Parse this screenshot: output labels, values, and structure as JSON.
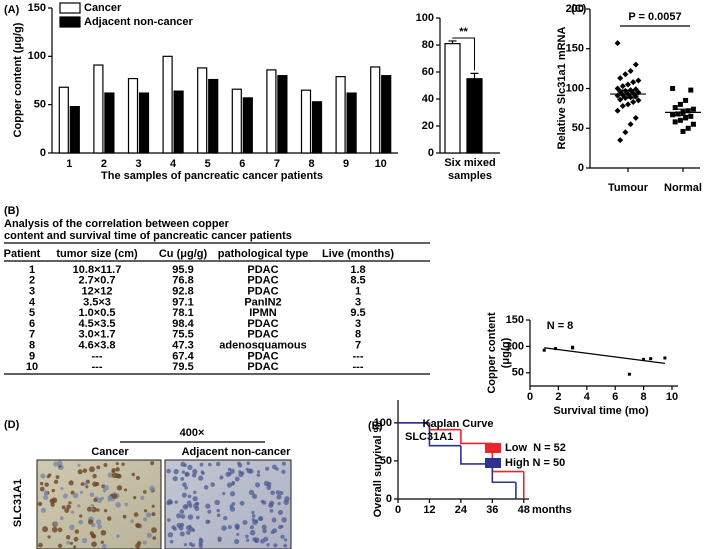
{
  "panel_labels": [
    "(A)",
    "(B)",
    "(C)",
    "(D)",
    "(E)"
  ],
  "chart_data": [
    {
      "type": "bar",
      "ylabel": "Copper content (μg/g)",
      "xlabel": "The samples of pancreatic cancer patients",
      "categories": [
        "1",
        "2",
        "3",
        "4",
        "5",
        "6",
        "7",
        "8",
        "9",
        "10"
      ],
      "series": [
        {
          "name": "Cancer",
          "color": "#ffffff",
          "values": [
            68,
            91,
            77,
            100,
            88,
            66,
            86,
            65,
            79,
            89
          ]
        },
        {
          "name": "Adjacent non-cancer",
          "color": "#000000",
          "values": [
            48,
            62,
            62,
            64,
            76,
            57,
            80,
            53,
            62,
            80
          ]
        }
      ],
      "ylim": [
        0,
        150
      ],
      "yticks": [
        0,
        50,
        100,
        150
      ]
    },
    {
      "type": "bar",
      "categories": [
        "Six mixed samples"
      ],
      "annotation": "**",
      "series": [
        {
          "color": "#ffffff",
          "values": [
            81
          ],
          "errors": [
            2
          ]
        },
        {
          "color": "#000000",
          "values": [
            55
          ],
          "errors": [
            4
          ]
        }
      ],
      "ylim": [
        0,
        100
      ],
      "yticks": [
        0,
        20,
        40,
        60,
        80,
        100
      ]
    },
    {
      "type": "dotplot",
      "ylabel": "Relative Slc31a1 mRNA",
      "annotation": "P = 0.0057",
      "categories": [
        "Tumour",
        "Normal"
      ],
      "groups": [
        {
          "values": [
            157,
            130,
            122,
            118,
            113,
            110,
            108,
            105,
            103,
            100,
            99,
            98,
            97,
            96,
            95,
            94,
            93,
            92,
            91,
            90,
            89,
            88,
            86,
            85,
            83,
            80,
            78,
            72,
            63,
            55,
            45,
            35
          ],
          "mean": 93,
          "sem": 5
        },
        {
          "values": [
            100,
            98,
            85,
            80,
            76,
            74,
            72,
            70,
            68,
            67,
            65,
            63,
            60,
            58,
            55,
            50,
            46
          ],
          "mean": 70,
          "sem": 4
        }
      ],
      "ylim": [
        0,
        200
      ],
      "yticks": [
        0,
        50,
        100,
        150,
        200
      ]
    },
    {
      "type": "scatter",
      "annotation": "N = 8",
      "xlabel": "Survival time (mo)",
      "ylabel": [
        "Copper content",
        "(μg/g)"
      ],
      "x": [
        1.8,
        8.5,
        1,
        3,
        9.5,
        3,
        8,
        7
      ],
      "values": [
        95.9,
        76.8,
        92.8,
        97.1,
        78.1,
        98.4,
        75.5,
        47.3
      ],
      "xlim": [
        0,
        10
      ],
      "ylim": [
        25,
        150
      ],
      "xticks": [
        0,
        2,
        4,
        6,
        8,
        10
      ],
      "yticks": [
        50,
        100,
        150
      ],
      "trendline": true
    },
    {
      "type": "step",
      "title": "Kaplan Curve",
      "subtitle": "SLC31A1",
      "ylabel": "Overall survival %",
      "xlabel": "months",
      "series": [
        {
          "name": "Low  N = 52",
          "color": "#e8262b",
          "x": [
            0,
            12,
            24,
            36,
            48
          ],
          "values": [
            100,
            91,
            73,
            36,
            0
          ]
        },
        {
          "name": "High N = 50",
          "color": "#2e3192",
          "x": [
            0,
            12,
            24,
            36,
            45
          ],
          "values": [
            100,
            70,
            46,
            22,
            0
          ]
        }
      ],
      "xlim": [
        0,
        50
      ],
      "ylim": [
        0,
        130
      ],
      "xticks": [
        0,
        12,
        24,
        36,
        48
      ],
      "yticks": [
        0,
        50,
        100
      ]
    }
  ],
  "table_caption": [
    "Analysis of the correlation between copper",
    "content and survival time of pancreatic cancer patients"
  ],
  "table": {
    "header": [
      "Patient",
      "tumor size (cm)",
      "Cu (μg/g)",
      "pathological type",
      "Live (months)"
    ],
    "rows": [
      [
        "1",
        "10.8×11.7",
        "95.9",
        "PDAC",
        "1.8"
      ],
      [
        "2",
        "2.7×0.7",
        "76.8",
        "PDAC",
        "8.5"
      ],
      [
        "3",
        "12×12",
        "92.8",
        "PDAC",
        "1"
      ],
      [
        "4",
        "3.5×3",
        "97.1",
        "PanIN2",
        "3"
      ],
      [
        "5",
        "1.0×0.5",
        "78.1",
        "IPMN",
        "9.5"
      ],
      [
        "6",
        "4.5×3.5",
        "98.4",
        "PDAC",
        "3"
      ],
      [
        "7",
        "3.0×1.7",
        "75.5",
        "PDAC",
        "8"
      ],
      [
        "8",
        "4.6×3.8",
        "47.3",
        "adenosquamous",
        "7"
      ],
      [
        "9",
        "---",
        "67.4",
        "PDAC",
        "---"
      ],
      [
        "10",
        "---",
        "79.5",
        "PDAC",
        "---"
      ]
    ]
  },
  "images": {
    "scale": "400×",
    "left_title": "Cancer",
    "right_title": "Adjacent non-cancer",
    "row_label": "SLC31A1"
  }
}
